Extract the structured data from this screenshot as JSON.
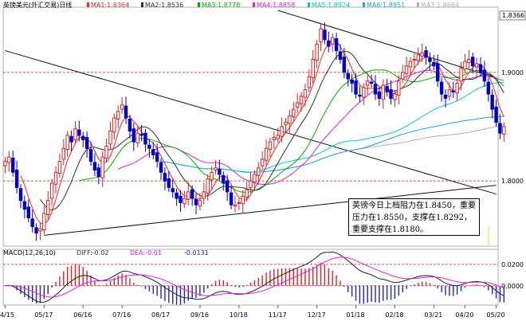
{
  "header": {
    "title": "英镑美元(外汇交易)日线",
    "ma": [
      {
        "label": "MA1:1.8364",
        "color": "#ff2020"
      },
      {
        "label": "MA2:1.8536",
        "color": "#303030"
      },
      {
        "label": "MA3:1.8778",
        "color": "#00b000"
      },
      {
        "label": "MA4:1.8858",
        "color": "#e020e0"
      },
      {
        "label": "MA5:1.8924",
        "color": "#00c8c8"
      },
      {
        "label": "MA6:1.8951",
        "color": "#20a0e0"
      },
      {
        "label": "MA7:1.8664",
        "color": "#b0b0b0"
      }
    ]
  },
  "price_tag": "1.8366",
  "macd_header": {
    "name": "MACD(12,26,10)",
    "diff": "DIFF:-0.02",
    "dea": "DEA:-0.01",
    "macd": "-0.0131"
  },
  "annotation": "英镑今日上档阻力在1.8450，重要压力在1.8550，支撑在1.8292，重要支撑在1.8180。",
  "chart_data": [
    {
      "type": "candlestick",
      "title": "英镑美元(外汇交易)日线",
      "y_ticks": [
        "1.9000",
        "1.8000"
      ],
      "ylim": [
        1.74,
        1.96
      ],
      "x_ticks": [
        "4/15",
        "05/17",
        "06/16",
        "07/16",
        "08/17",
        "09/16",
        "10/18",
        "11/17",
        "12/17",
        "01/18",
        "02/18",
        "03/21",
        "04/20",
        "05/20"
      ],
      "close": [
        1.818,
        1.822,
        1.808,
        1.794,
        1.782,
        1.774,
        1.766,
        1.758,
        1.752,
        1.756,
        1.77,
        1.782,
        1.798,
        1.808,
        1.818,
        1.83,
        1.842,
        1.836,
        1.848,
        1.842,
        1.838,
        1.83,
        1.818,
        1.81,
        1.804,
        1.822,
        1.832,
        1.846,
        1.858,
        1.864,
        1.87,
        1.858,
        1.846,
        1.836,
        1.844,
        1.842,
        1.834,
        1.83,
        1.824,
        1.818,
        1.808,
        1.8,
        1.794,
        1.79,
        1.784,
        1.78,
        1.784,
        1.79,
        1.784,
        1.778,
        1.782,
        1.79,
        1.802,
        1.808,
        1.812,
        1.806,
        1.798,
        1.79,
        1.778,
        1.778,
        1.78,
        1.786,
        1.792,
        1.8,
        1.806,
        1.812,
        1.82,
        1.83,
        1.836,
        1.84,
        1.842,
        1.85,
        1.854,
        1.86,
        1.866,
        1.872,
        1.878,
        1.884,
        1.896,
        1.912,
        1.926,
        1.94,
        1.93,
        1.924,
        1.932,
        1.92,
        1.912,
        1.9,
        1.894,
        1.89,
        1.88,
        1.878,
        1.886,
        1.892,
        1.89,
        1.88,
        1.876,
        1.888,
        1.882,
        1.876,
        1.88,
        1.892,
        1.9,
        1.906,
        1.91,
        1.912,
        1.916,
        1.918,
        1.914,
        1.91,
        1.906,
        1.892,
        1.88,
        1.876,
        1.884,
        1.882,
        1.89,
        1.904,
        1.91,
        1.912,
        1.906,
        1.908,
        1.9,
        1.892,
        1.88,
        1.866,
        1.854,
        1.844,
        1.85
      ],
      "series": [
        {
          "name": "MA1",
          "color": "#ff2020"
        },
        {
          "name": "MA2",
          "color": "#303030"
        },
        {
          "name": "MA3",
          "color": "#00b000"
        },
        {
          "name": "MA4",
          "color": "#e020e0"
        },
        {
          "name": "MA5",
          "color": "#00c8c8"
        },
        {
          "name": "MA6",
          "color": "#20a0e0"
        },
        {
          "name": "MA7",
          "color": "#b0b0b0"
        }
      ],
      "trendlines": [
        {
          "from": [
            0,
            1.92
          ],
          "to": [
            126,
            1.788
          ]
        },
        {
          "from": [
            10,
            1.75
          ],
          "to": [
            126,
            1.796
          ]
        },
        {
          "from": [
            70,
            1.957
          ],
          "to": [
            126,
            1.895
          ]
        }
      ],
      "last_price": 1.8366
    },
    {
      "type": "bar",
      "title": "MACD(12,26,10)",
      "y_ticks": [
        "0.0200",
        "0.0000"
      ],
      "ylim": [
        -0.018,
        0.034
      ],
      "diff_last": -0.02,
      "dea_last": -0.01,
      "macd_last": -0.0131
    }
  ]
}
